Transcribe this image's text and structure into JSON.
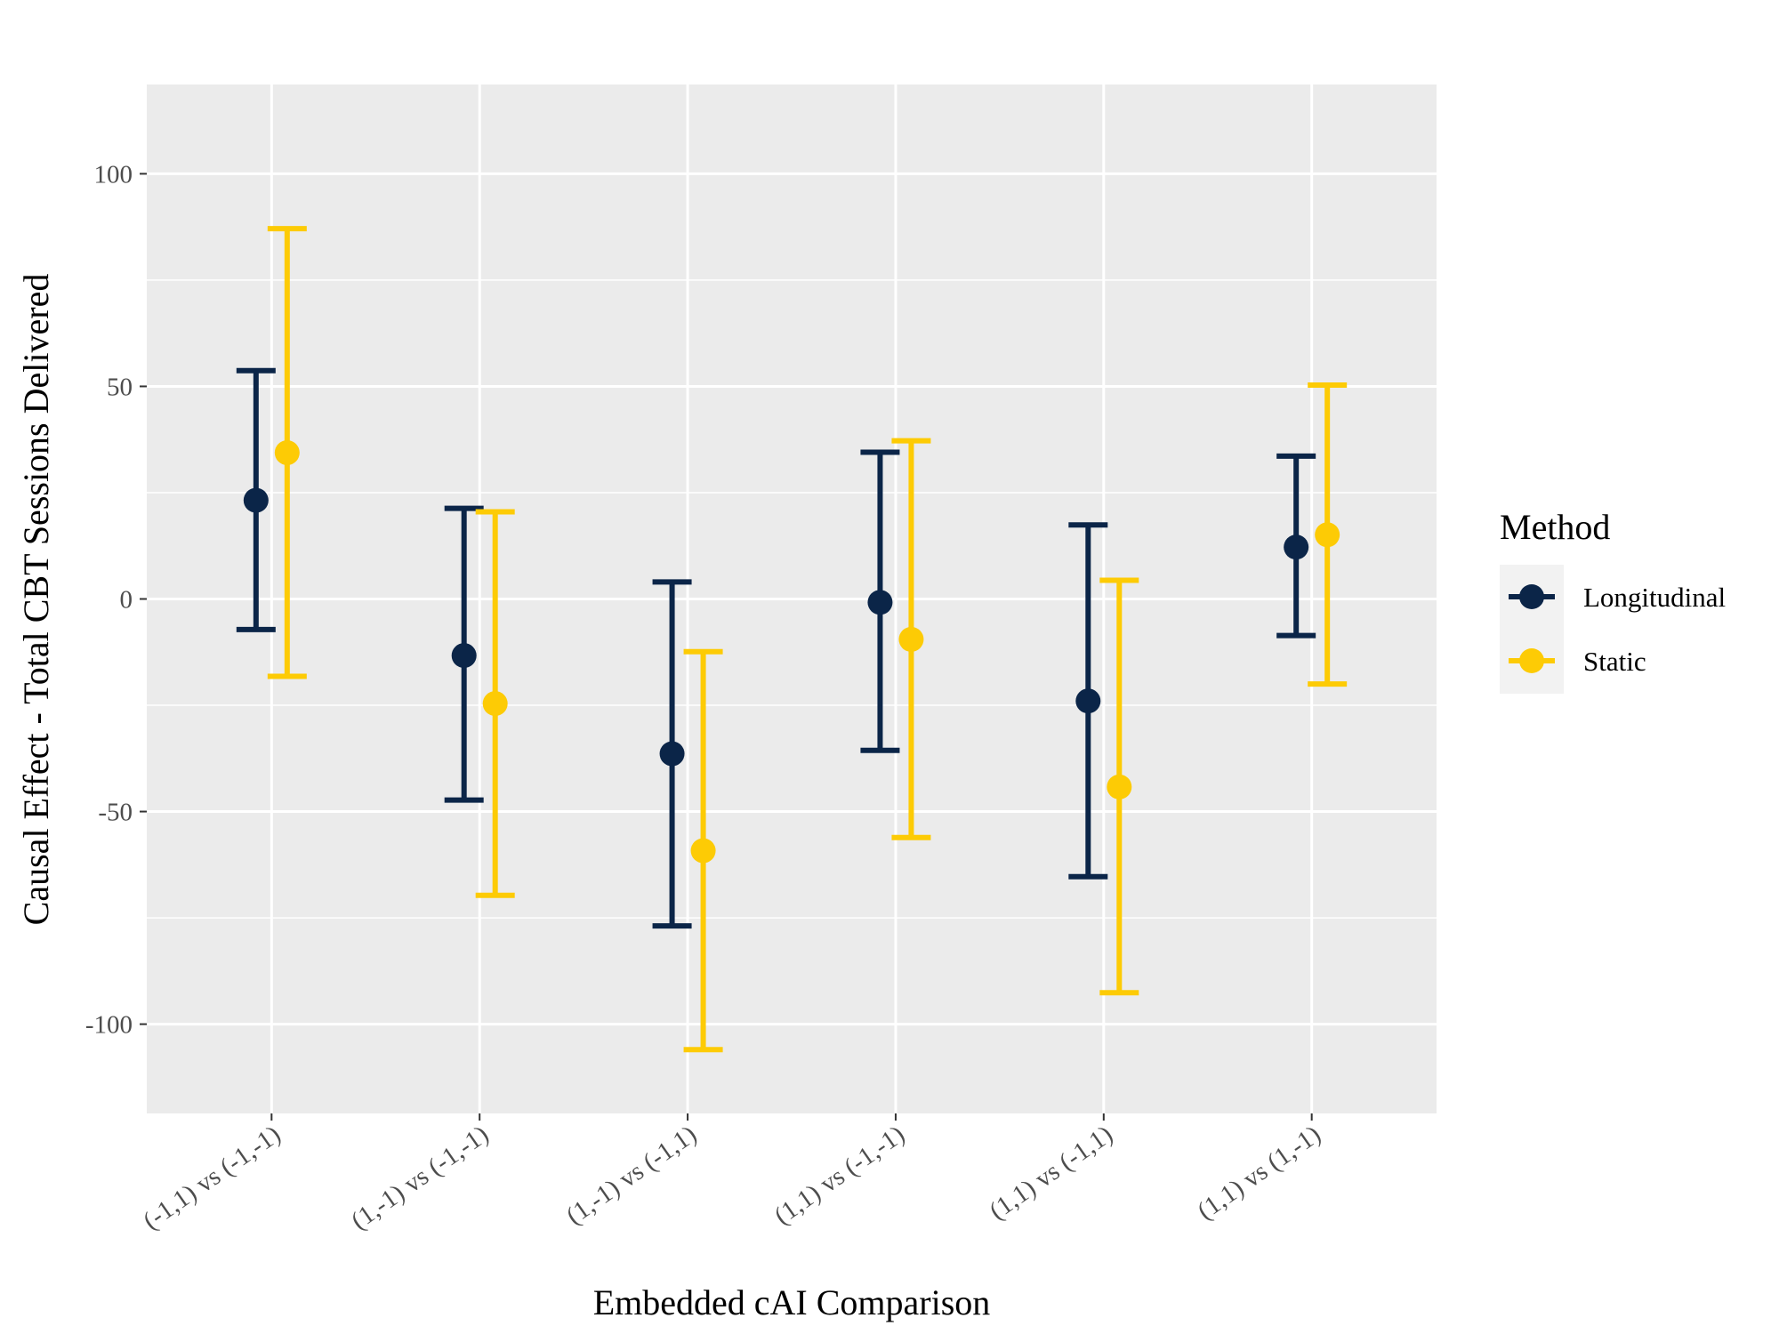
{
  "chart_data": {
    "type": "errorbar",
    "title": "",
    "xlabel": "Embedded cAI Comparison",
    "ylabel": "Causal Effect - Total CBT Sessions Delivered",
    "ylim": [
      -121,
      121
    ],
    "yticks": [
      100,
      50,
      0,
      -50,
      -100
    ],
    "ytick_labels": [
      "100",
      "50",
      "0",
      "-50",
      "-100"
    ],
    "categories": [
      "(-1,1) vs (-1,-1)",
      "(1,-1) vs (-1,-1)",
      "(1,-1) vs (-1,1)",
      "(1,1) vs (-1,-1)",
      "(1,1) vs (-1,1)",
      "(1,1) vs (1,-1)"
    ],
    "grid": true,
    "legend": {
      "title": "Method",
      "position": "right"
    },
    "series": [
      {
        "name": "Longitudinal",
        "color": "#0b2548",
        "estimates": [
          23.2,
          -13.3,
          -36.4,
          -0.8,
          -24.0,
          12.2
        ],
        "lower": [
          -7.2,
          -47.3,
          -76.9,
          -35.6,
          -65.3,
          -8.6
        ],
        "upper": [
          53.7,
          21.3,
          4.0,
          34.5,
          17.4,
          33.6
        ]
      },
      {
        "name": "Static",
        "color": "#fdcb05",
        "estimates": [
          34.4,
          -24.6,
          -59.2,
          -9.5,
          -44.2,
          15.1
        ],
        "lower": [
          -18.2,
          -69.7,
          -106.0,
          -56.1,
          -92.6,
          -20.0
        ],
        "upper": [
          87.1,
          20.5,
          -12.4,
          37.2,
          4.4,
          50.3
        ]
      }
    ]
  }
}
